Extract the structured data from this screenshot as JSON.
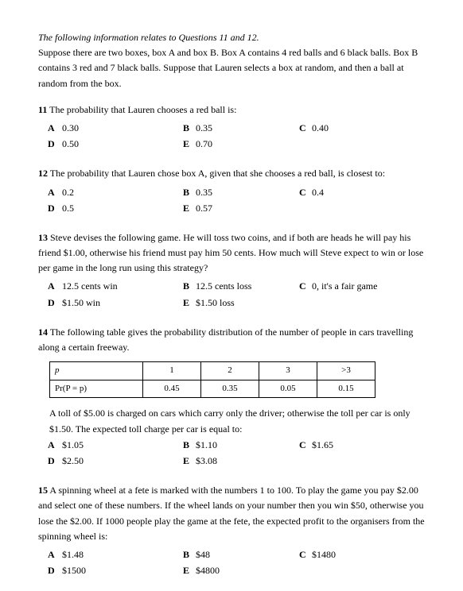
{
  "intro": {
    "line1": "The following information relates to Questions 11 and 12.",
    "line2": "Suppose there are two boxes, box A and box B. Box A contains 4 red balls and 6 black balls. Box B contains 3 red and 7 black balls. Suppose that Lauren selects a box at random, and then a ball at random from the box."
  },
  "q11": {
    "num": "11",
    "stem": "The probability that Lauren chooses a red ball is:",
    "A": "0.30",
    "B": "0.35",
    "C": "0.40",
    "D": "0.50",
    "E": "0.70"
  },
  "q12": {
    "num": "12",
    "stem": "The probability that Lauren chose box A, given that she chooses a red ball, is closest to:",
    "A": "0.2",
    "B": "0.35",
    "C": "0.4",
    "D": "0.5",
    "E": "0.57"
  },
  "q13": {
    "num": "13",
    "stem": "Steve devises the following game. He will toss two coins, and if both are heads he will pay his friend $1.00, otherwise his friend must pay him 50 cents. How much will Steve expect to win or lose per game in the long run using this strategy?",
    "A": "12.5 cents win",
    "B": "12.5 cents loss",
    "C": "0, it's a fair game",
    "D": "$1.50 win",
    "E": "$1.50 loss"
  },
  "q14": {
    "num": "14",
    "stem": "The following table gives the probability distribution of the number of people in cars travelling along a certain freeway.",
    "table": {
      "row1": [
        "p",
        "1",
        "2",
        "3",
        ">3"
      ],
      "row2": [
        "Pr(P = p)",
        "0.45",
        "0.35",
        "0.05",
        "0.15"
      ]
    },
    "followup": "A toll of $5.00 is charged on cars which carry only the driver; otherwise the toll per car is only $1.50. The expected toll charge per car is equal to:",
    "A": "$1.05",
    "B": "$1.10",
    "C": "$1.65",
    "D": "$2.50",
    "E": "$3.08"
  },
  "q15": {
    "num": "15",
    "stem": "A spinning wheel at a fete is marked with the numbers 1 to 100. To play the game you pay $2.00 and select one of these numbers. If the wheel lands on your number then you win $50, otherwise you lose the $2.00. If 1000 people play the game at the fete, the expected profit to the organisers from the spinning wheel is:",
    "A": "$1.48",
    "B": "$48",
    "C": "$1480",
    "D": "$1500",
    "E": "$4800"
  },
  "labels": {
    "A": "A",
    "B": "B",
    "C": "C",
    "D": "D",
    "E": "E"
  }
}
